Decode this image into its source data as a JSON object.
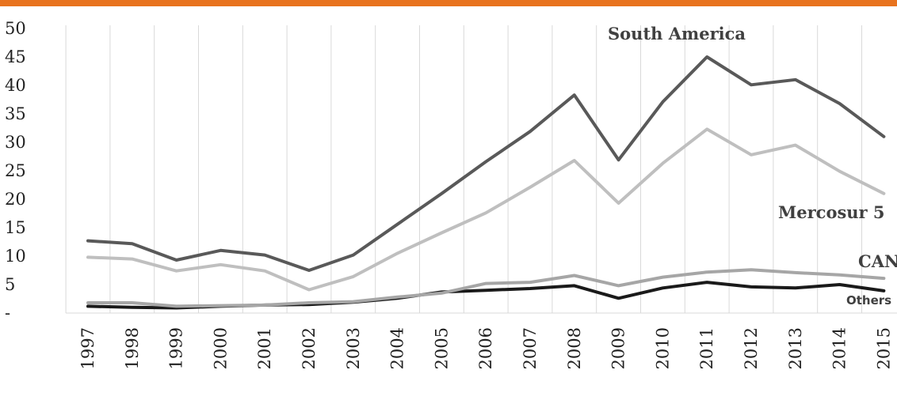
{
  "colors": {
    "top_bar": "#E8731E",
    "grid": "#D9D9D9",
    "south_america": "#595959",
    "mercosur_5": "#BFBFBF",
    "can": "#A6A6A6",
    "others": "#1A1A1A"
  },
  "chart_data": {
    "type": "line",
    "title": "",
    "xlabel": "",
    "ylabel": "",
    "ylim": [
      0,
      50
    ],
    "yticks": [
      {
        "value": 0,
        "label": "-"
      },
      {
        "value": 5,
        "label": "5"
      },
      {
        "value": 10,
        "label": "10"
      },
      {
        "value": 15,
        "label": "15"
      },
      {
        "value": 20,
        "label": "20"
      },
      {
        "value": 25,
        "label": "25"
      },
      {
        "value": 30,
        "label": "30"
      },
      {
        "value": 35,
        "label": "35"
      },
      {
        "value": 40,
        "label": "40"
      },
      {
        "value": 45,
        "label": "45"
      },
      {
        "value": 50,
        "label": "50"
      }
    ],
    "grid": "vertical",
    "x": [
      "1997",
      "1998",
      "1999",
      "2000",
      "2001",
      "2002",
      "2003",
      "2004",
      "2005",
      "2006",
      "2007",
      "2008",
      "2009",
      "2010",
      "2011",
      "2012",
      "2013",
      "2014",
      "2015"
    ],
    "series": [
      {
        "name": "South America",
        "color_key": "south_america",
        "values": [
          12.7,
          12.2,
          9.3,
          11.0,
          10.2,
          7.5,
          10.2,
          15.6,
          21.0,
          26.6,
          31.9,
          38.3,
          26.9,
          37.1,
          45.0,
          40.1,
          41.0,
          36.8,
          31.0
        ]
      },
      {
        "name": "Mercosur 5",
        "color_key": "mercosur_5",
        "values": [
          9.8,
          9.5,
          7.4,
          8.5,
          7.4,
          4.1,
          6.4,
          10.5,
          14.1,
          17.6,
          22.1,
          26.8,
          19.3,
          26.3,
          32.3,
          27.8,
          29.5,
          24.9,
          21.0
        ]
      },
      {
        "name": "CAN",
        "color_key": "can",
        "values": [
          1.8,
          1.8,
          1.2,
          1.3,
          1.4,
          1.8,
          2.0,
          2.8,
          3.5,
          5.2,
          5.4,
          6.6,
          4.8,
          6.3,
          7.2,
          7.6,
          7.1,
          6.7,
          6.1
        ]
      },
      {
        "name": "Others",
        "color_key": "others",
        "values": [
          1.2,
          1.0,
          0.9,
          1.2,
          1.4,
          1.5,
          1.9,
          2.6,
          3.7,
          4.0,
          4.3,
          4.8,
          2.6,
          4.4,
          5.4,
          4.6,
          4.4,
          5.0,
          3.9
        ]
      }
    ]
  }
}
